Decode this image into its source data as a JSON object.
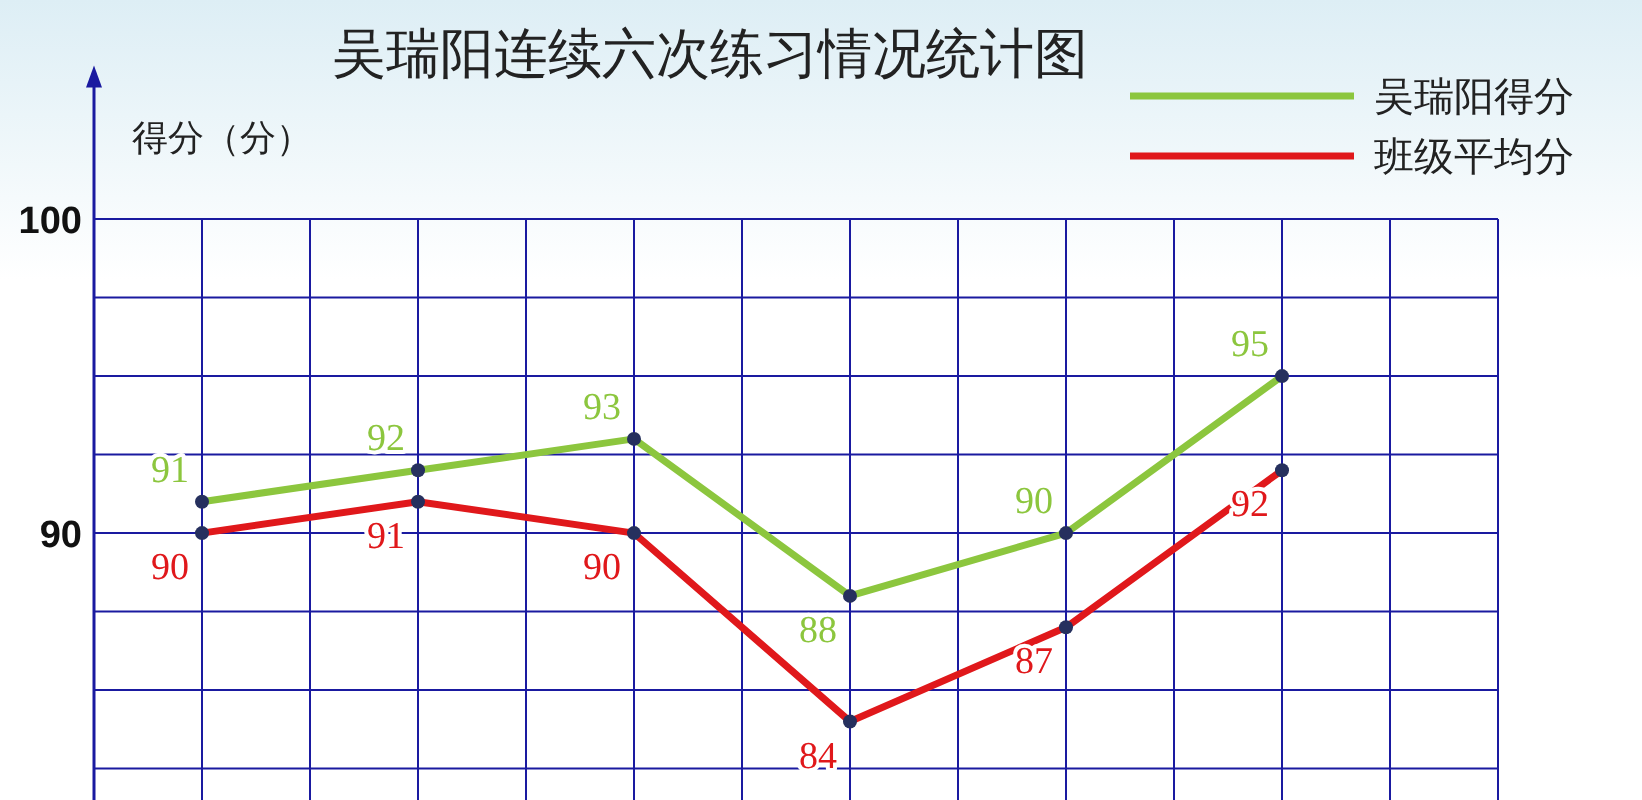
{
  "chart_data": {
    "type": "line",
    "title": "吴瑞阳连续六次练习情况统计图",
    "ylabel": "得分（分）",
    "categories": [
      null,
      null,
      null,
      null,
      null,
      null
    ],
    "series": [
      {
        "name": "吴瑞阳得分",
        "color": "#8cc63e",
        "values": [
          91,
          92,
          93,
          88,
          90,
          95
        ]
      },
      {
        "name": "班级平均分",
        "color": "#e0181b",
        "values": [
          90,
          91,
          90,
          84,
          87,
          92
        ]
      }
    ],
    "ylim": [
      81.5,
      104.7
    ],
    "yticks": [
      {
        "value": 82.5,
        "label": null
      },
      {
        "value": 85,
        "label": null
      },
      {
        "value": 87.5,
        "label": null
      },
      90,
      {
        "value": 92.5,
        "label": null
      },
      {
        "value": 95,
        "label": null
      },
      {
        "value": 97.5,
        "label": null
      },
      100
    ],
    "grid": true,
    "legend": "top right",
    "marker": "circle",
    "line_style": "solid",
    "data_labels": true,
    "tick_labels": "y"
  }
}
